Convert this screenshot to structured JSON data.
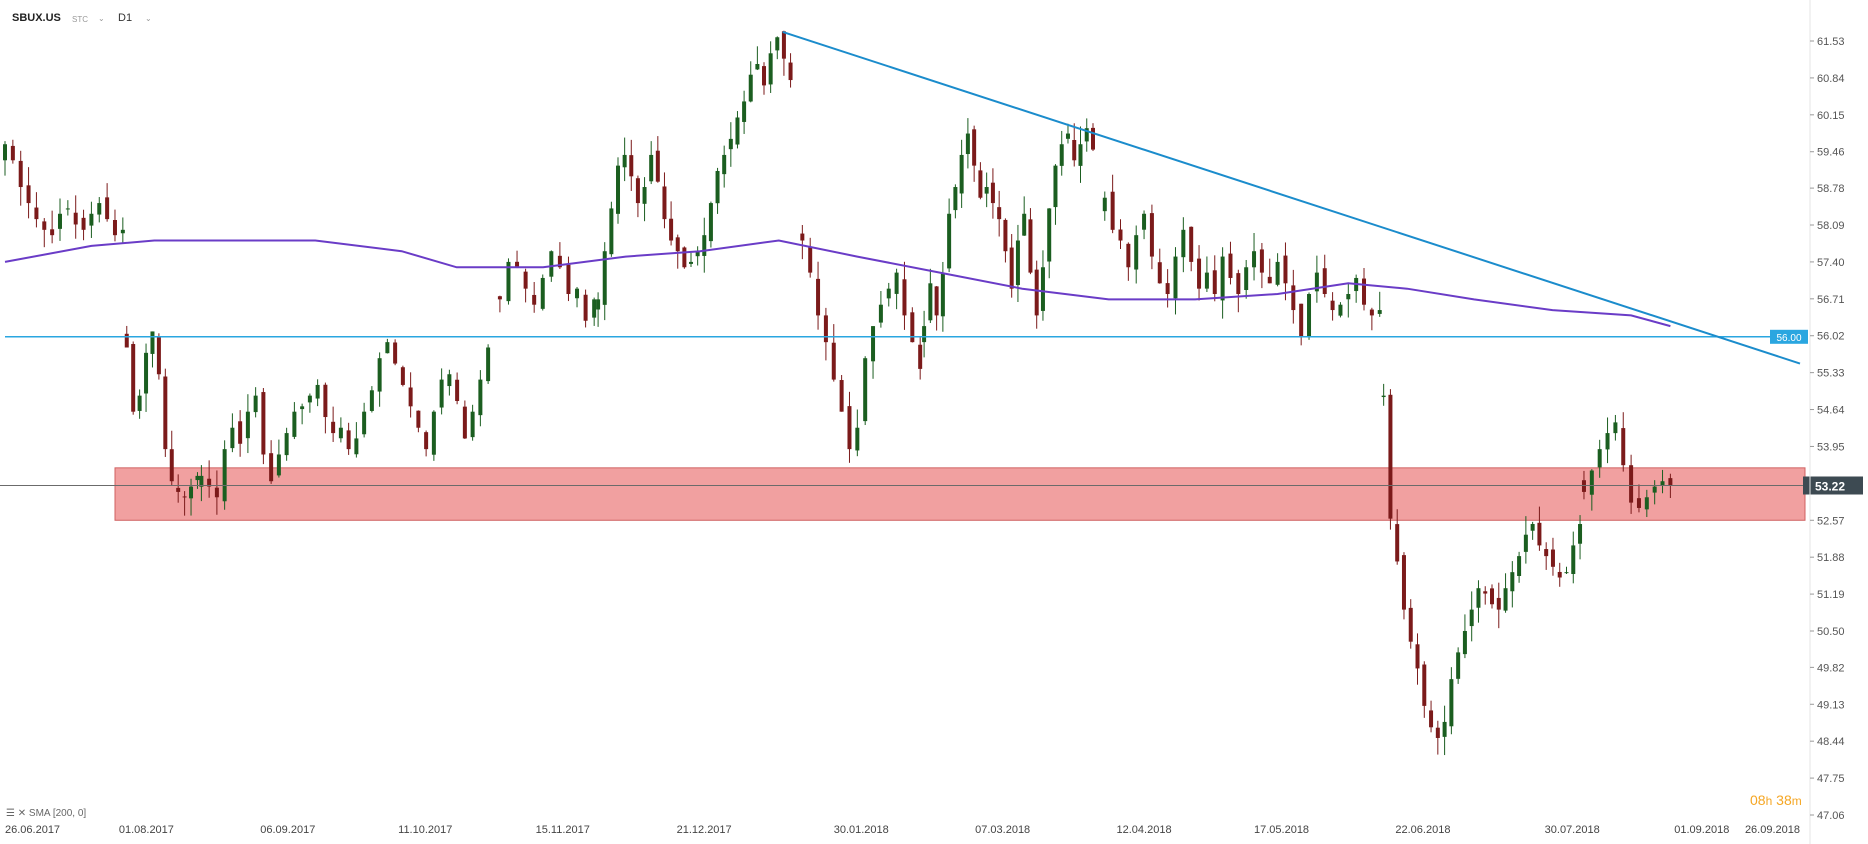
{
  "header": {
    "symbol": "SBUX.US",
    "price_type": "STC",
    "timeframe": "D1"
  },
  "indicator_label": "SMA [200, 0]",
  "timer": {
    "hours": "08",
    "h": "h",
    "minutes": "38",
    "m": "m"
  },
  "colors": {
    "bull": "#1b5e20",
    "bear": "#7b1a1a",
    "sma": "#6a3cc7",
    "trendline": "#1b8ccc",
    "hline": "#2aa6e0",
    "zone": "#ef8f8f",
    "current_price_bg": "#3d4a52"
  },
  "chart_data": {
    "type": "candlestick",
    "symbol": "SBUX.US",
    "timeframe": "D1",
    "ylim": [
      47.06,
      62.1
    ],
    "y_ticks": [
      "61.53",
      "60.84",
      "60.15",
      "59.46",
      "58.78",
      "58.09",
      "57.40",
      "56.71",
      "56.02",
      "55.33",
      "54.64",
      "53.95",
      "52.57",
      "51.88",
      "51.19",
      "50.50",
      "49.82",
      "49.13",
      "48.44",
      "47.75",
      "47.06"
    ],
    "x_ticks": [
      "26.06.2017",
      "01.08.2017",
      "06.09.2017",
      "11.10.2017",
      "15.11.2017",
      "21.12.2017",
      "30.01.2018",
      "07.03.2018",
      "12.04.2018",
      "17.05.2018",
      "22.06.2018",
      "30.07.2018",
      "01.09.2018",
      "26.09.2018"
    ],
    "current_price": "53.22",
    "horizontal_level": "56.00",
    "support_zone": [
      52.57,
      53.55
    ],
    "trendline": {
      "start": [
        "2018-01-10",
        61.7
      ],
      "end": [
        "2018-09-26",
        55.5
      ]
    },
    "sma_200": [
      [
        "2017-06-26",
        57.4
      ],
      [
        "2017-07-18",
        57.7
      ],
      [
        "2017-08-03",
        57.8
      ],
      [
        "2017-08-28",
        57.8
      ],
      [
        "2017-09-13",
        57.8
      ],
      [
        "2017-10-05",
        57.6
      ],
      [
        "2017-10-19",
        57.3
      ],
      [
        "2017-11-10",
        57.3
      ],
      [
        "2017-12-01",
        57.5
      ],
      [
        "2017-12-20",
        57.6
      ],
      [
        "2018-01-09",
        57.8
      ],
      [
        "2018-01-29",
        57.5
      ],
      [
        "2018-02-19",
        57.2
      ],
      [
        "2018-03-12",
        56.9
      ],
      [
        "2018-04-03",
        56.7
      ],
      [
        "2018-04-25",
        56.7
      ],
      [
        "2018-05-16",
        56.8
      ],
      [
        "2018-06-03",
        57.0
      ],
      [
        "2018-06-18",
        56.9
      ],
      [
        "2018-07-05",
        56.7
      ],
      [
        "2018-07-25",
        56.5
      ],
      [
        "2018-08-14",
        56.4
      ],
      [
        "2018-08-24",
        56.2
      ]
    ],
    "ohlc_segments": [
      {
        "from": "2017-06-26",
        "to": "2017-07-26",
        "prices": [
          59.6,
          59.3,
          58.8,
          58.5,
          58.2,
          58.0,
          57.9,
          58.3,
          58.4,
          58.1,
          58.0,
          58.3,
          58.5,
          58.2,
          57.9,
          58.0
        ]
      },
      {
        "from": "2017-07-27",
        "to": "2017-08-14",
        "prices": [
          55.8,
          54.6,
          54.9,
          55.7,
          56.1,
          55.3,
          53.9,
          53.3,
          53.1,
          53.0,
          53.2,
          53.4
        ]
      },
      {
        "from": "2017-08-15",
        "to": "2017-10-27",
        "prices": [
          53.4,
          53.2,
          53.0,
          53.9,
          54.3,
          54.0,
          54.6,
          54.9,
          53.8,
          53.3,
          53.8,
          54.2,
          54.6,
          54.7,
          54.9,
          55.1,
          54.5,
          54.2,
          54.3,
          53.9,
          54.1,
          54.6,
          55.0,
          55.6,
          55.9,
          55.5,
          55.1,
          54.7,
          54.3,
          53.9,
          54.6,
          55.2,
          55.3,
          54.8,
          54.1,
          54.6,
          55.2,
          55.8
        ]
      },
      {
        "from": "2017-10-30",
        "to": "2017-11-23",
        "prices": [
          56.7,
          57.4,
          57.3,
          56.9,
          56.6,
          57.1,
          57.6,
          57.3,
          56.8,
          56.9,
          56.3,
          56.7
        ]
      },
      {
        "from": "2017-11-24",
        "to": "2018-01-12",
        "prices": [
          56.7,
          57.6,
          58.4,
          59.2,
          59.4,
          59.0,
          58.5,
          58.8,
          59.4,
          58.9,
          58.2,
          57.8,
          57.6,
          57.3,
          57.4,
          57.6,
          57.9,
          58.5,
          59.1,
          59.4,
          59.7,
          60.1,
          60.4,
          60.9,
          61.1,
          60.7,
          61.3,
          61.6,
          61.2,
          60.8
        ]
      },
      {
        "from": "2018-01-15",
        "to": "2018-02-14",
        "prices": [
          57.8,
          57.2,
          56.4,
          55.9,
          55.2,
          54.6,
          53.9,
          54.3,
          55.6,
          56.2,
          56.6,
          56.9,
          57.2,
          56.4,
          55.9,
          55.4
        ]
      },
      {
        "from": "2018-02-15",
        "to": "2018-03-30",
        "prices": [
          56.2,
          57.0,
          56.4,
          57.2,
          58.3,
          58.8,
          59.4,
          59.8,
          59.2,
          58.6,
          58.8,
          58.5,
          58.2,
          57.6,
          56.9,
          57.8,
          58.3,
          57.2,
          56.4,
          57.3,
          58.4,
          59.2,
          59.6,
          59.8,
          59.3,
          59.6,
          59.9,
          59.5
        ]
      },
      {
        "from": "2018-04-02",
        "to": "2018-06-11",
        "prices": [
          58.6,
          58.0,
          57.8,
          57.3,
          57.9,
          58.3,
          57.5,
          57.0,
          56.8,
          57.5,
          58.0,
          57.4,
          56.9,
          57.2,
          56.8,
          57.5,
          57.1,
          56.8,
          57.3,
          57.6,
          57.2,
          57.0,
          57.4,
          57.0,
          56.5,
          56.0,
          56.8,
          57.2,
          56.8,
          56.5,
          56.6,
          56.8,
          57.1,
          56.6,
          56.4,
          56.5
        ]
      },
      {
        "from": "2018-06-12",
        "to": "2018-08-01",
        "prices": [
          54.9,
          52.6,
          51.8,
          50.9,
          50.3,
          49.8,
          49.1,
          48.7,
          48.5,
          48.8,
          49.6,
          50.1,
          50.5,
          50.9,
          51.3,
          51.2,
          51.0,
          50.9,
          51.3,
          51.6,
          51.9,
          52.3,
          52.5,
          52.1,
          51.9,
          51.7,
          51.5,
          51.6,
          52.1,
          52.5
        ]
      },
      {
        "from": "2018-08-02",
        "to": "2018-08-24",
        "prices": [
          53.1,
          53.5,
          53.9,
          54.2,
          54.4,
          53.6,
          52.9,
          52.8,
          53.0,
          53.2,
          53.3,
          53.22
        ]
      }
    ]
  }
}
